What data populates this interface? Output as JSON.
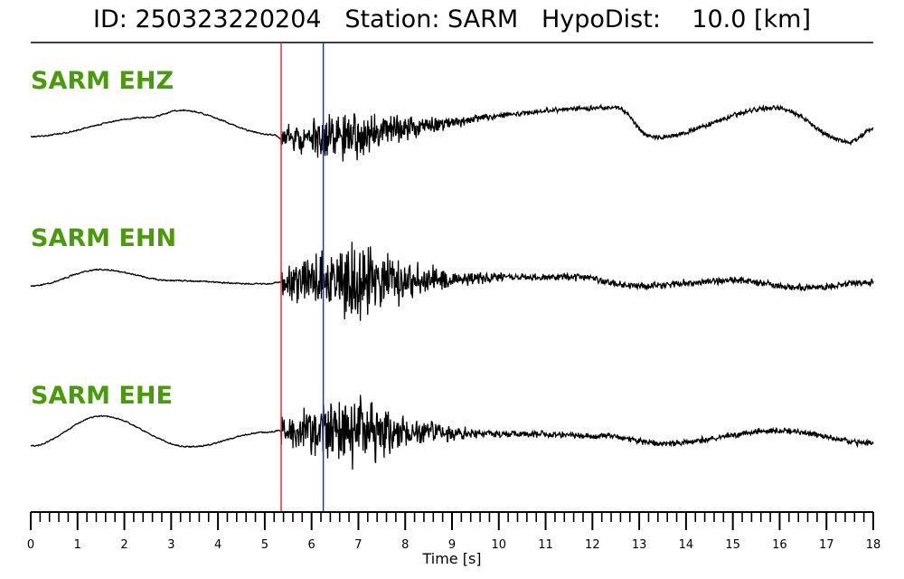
{
  "title": {
    "id_label": "ID:",
    "id_value": "250323220204",
    "station_label": "Station:",
    "station_value": "SARM",
    "dist_label": "HypoDist:",
    "dist_value": "10.0",
    "dist_unit": "[km]"
  },
  "colors": {
    "channel_label": "#4a9a0a",
    "p_pick": "#e8312b",
    "s_pick": "#2432c4",
    "trace": "#000000"
  },
  "chart_data": {
    "type": "line",
    "title": "ID: 250323220204   Station: SARM   HypoDist:    10.0 [km]",
    "xlabel": "Time [s]",
    "xlim": [
      0,
      18
    ],
    "x_ticks": [
      "0",
      "1",
      "2",
      "3",
      "4",
      "5",
      "6",
      "7",
      "8",
      "9",
      "10",
      "11",
      "12",
      "13",
      "14",
      "15",
      "16",
      "17",
      "18"
    ],
    "grid": false,
    "legend": "none",
    "markers": [
      {
        "name": "P pick",
        "x": 5.35,
        "color": "#e8312b"
      },
      {
        "name": "S pick",
        "x": 6.25,
        "color": "#2432c4"
      }
    ],
    "series": [
      {
        "name": "SARM EHZ",
        "label": "SARM EHZ"
      },
      {
        "name": "SARM EHN",
        "label": "SARM EHN"
      },
      {
        "name": "SARM EHE",
        "label": "SARM EHE"
      }
    ]
  }
}
